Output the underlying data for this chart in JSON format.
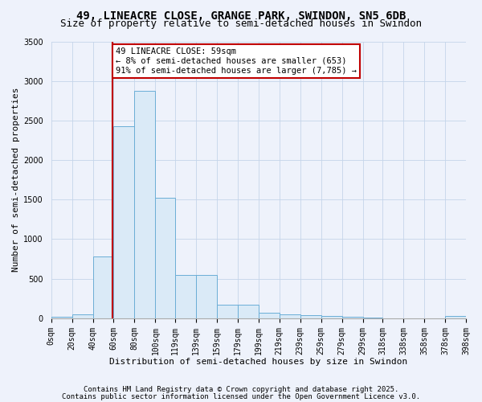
{
  "title1": "49, LINEACRE CLOSE, GRANGE PARK, SWINDON, SN5 6DB",
  "title2": "Size of property relative to semi-detached houses in Swindon",
  "xlabel": "Distribution of semi-detached houses by size in Swindon",
  "ylabel": "Number of semi-detached properties",
  "bin_edges": [
    0,
    20,
    40,
    60,
    80,
    100,
    119,
    139,
    159,
    179,
    199,
    219,
    239,
    259,
    279,
    299,
    318,
    338,
    358,
    378,
    398
  ],
  "bar_heights": [
    18,
    45,
    780,
    2430,
    2870,
    1520,
    550,
    545,
    175,
    170,
    70,
    45,
    35,
    25,
    15,
    5,
    3,
    2,
    0,
    30
  ],
  "bar_facecolor": "#daeaf7",
  "bar_edgecolor": "#6baed6",
  "property_size": 59,
  "vline_color": "#c00000",
  "annotation_line1": "49 LINEACRE CLOSE: 59sqm",
  "annotation_line2": "← 8% of semi-detached houses are smaller (653)",
  "annotation_line3": "91% of semi-detached houses are larger (7,785) →",
  "annotation_bbox_edgecolor": "#c00000",
  "annotation_bbox_facecolor": "white",
  "ylim": [
    0,
    3500
  ],
  "yticks": [
    0,
    500,
    1000,
    1500,
    2000,
    2500,
    3000,
    3500
  ],
  "background_color": "#eef2fb",
  "grid_color": "#c5d5ea",
  "footnote1": "Contains HM Land Registry data © Crown copyright and database right 2025.",
  "footnote2": "Contains public sector information licensed under the Open Government Licence v3.0.",
  "title1_fontsize": 10,
  "title2_fontsize": 9,
  "xlabel_fontsize": 8,
  "ylabel_fontsize": 8,
  "tick_fontsize": 7,
  "annotation_fontsize": 7.5,
  "footnote_fontsize": 6.5
}
